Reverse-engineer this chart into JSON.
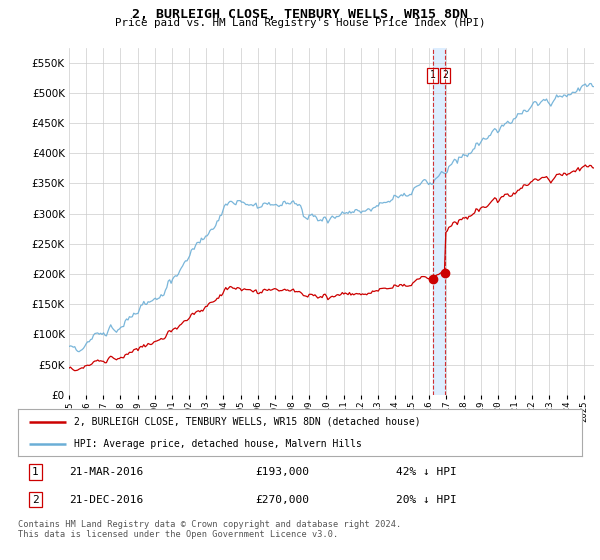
{
  "title": "2, BURLEIGH CLOSE, TENBURY WELLS, WR15 8DN",
  "subtitle": "Price paid vs. HM Land Registry's House Price Index (HPI)",
  "ytick_values": [
    0,
    50000,
    100000,
    150000,
    200000,
    250000,
    300000,
    350000,
    400000,
    450000,
    500000,
    550000
  ],
  "ylim": [
    0,
    575000
  ],
  "hpi_color": "#6baed6",
  "price_color": "#cc0000",
  "vline_color": "#cc0000",
  "shade_color": "#ddeeff",
  "transaction1_year": 2016.208,
  "transaction1_price": 193000,
  "transaction2_year": 2016.917,
  "transaction2_price": 270000,
  "legend1_label": "2, BURLEIGH CLOSE, TENBURY WELLS, WR15 8DN (detached house)",
  "legend2_label": "HPI: Average price, detached house, Malvern Hills",
  "footer": "Contains HM Land Registry data © Crown copyright and database right 2024.\nThis data is licensed under the Open Government Licence v3.0.",
  "table_row1": [
    "1",
    "21-MAR-2016",
    "£193,000",
    "42% ↓ HPI"
  ],
  "table_row2": [
    "2",
    "21-DEC-2016",
    "£270,000",
    "20% ↓ HPI"
  ],
  "background_color": "#ffffff",
  "grid_color": "#cccccc",
  "xlim_start": 1995.0,
  "xlim_end": 2025.6
}
